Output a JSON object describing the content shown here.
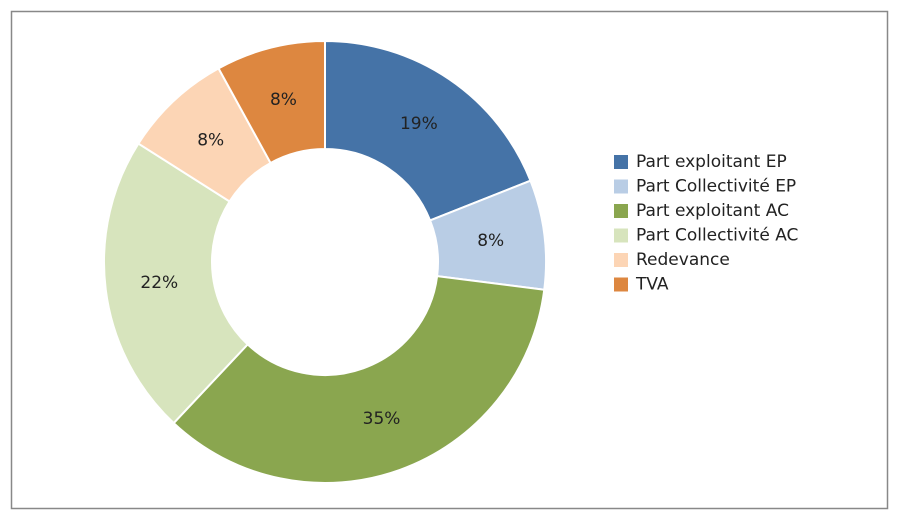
{
  "chart_data": {
    "type": "pie",
    "categories": [
      "Part exploitant EP",
      "Part Collectivité EP",
      "Part exploitant AC",
      "Part Collectivité AC",
      "Redevance",
      "TVA"
    ],
    "values": [
      19,
      8,
      35,
      22,
      8,
      8
    ],
    "value_labels": [
      "19%",
      "8%",
      "35%",
      "22%",
      "8%",
      "8%"
    ],
    "colors": [
      "#4573a7",
      "#b9cde5",
      "#8aa64f",
      "#d7e4bd",
      "#fcd5b5",
      "#dd8740"
    ],
    "legend": "right"
  }
}
